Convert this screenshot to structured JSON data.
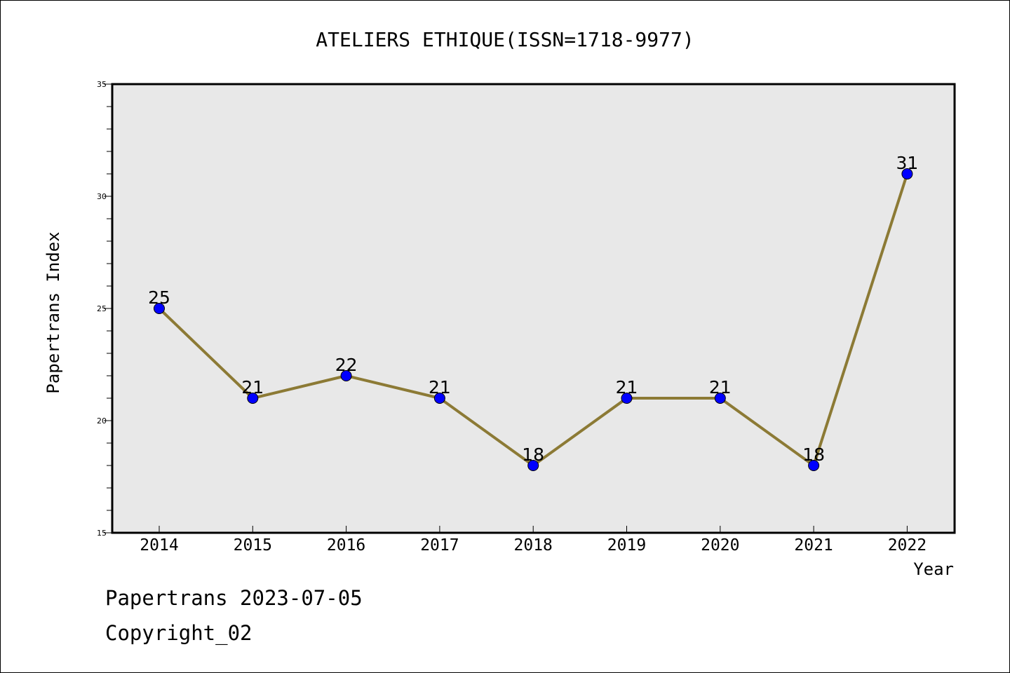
{
  "chart_data": {
    "type": "line",
    "title": "ATELIERS ETHIQUE(ISSN=1718-9977)",
    "xlabel": "Year",
    "ylabel": "Papertrans Index",
    "x": [
      "2014",
      "2015",
      "2016",
      "2017",
      "2018",
      "2019",
      "2020",
      "2021",
      "2022"
    ],
    "series": [
      {
        "values": [
          25,
          21,
          22,
          21,
          18,
          21,
          21,
          18,
          31
        ],
        "labels": [
          "25",
          "21",
          "22",
          "21",
          "18",
          "21",
          "21",
          "18",
          "31"
        ]
      }
    ],
    "ylim": [
      15,
      35
    ],
    "y_ticks": [
      "15",
      "20",
      "25",
      "30",
      "35"
    ],
    "y_minor_step": 1,
    "grid": false,
    "legend": "none",
    "line_color": "#8c7a35",
    "marker_color": "#0000ff",
    "plot_background": "#e8e8e8"
  },
  "footer": {
    "date_line": "Papertrans 2023-07-05",
    "copyright_line": "Copyright_02"
  }
}
